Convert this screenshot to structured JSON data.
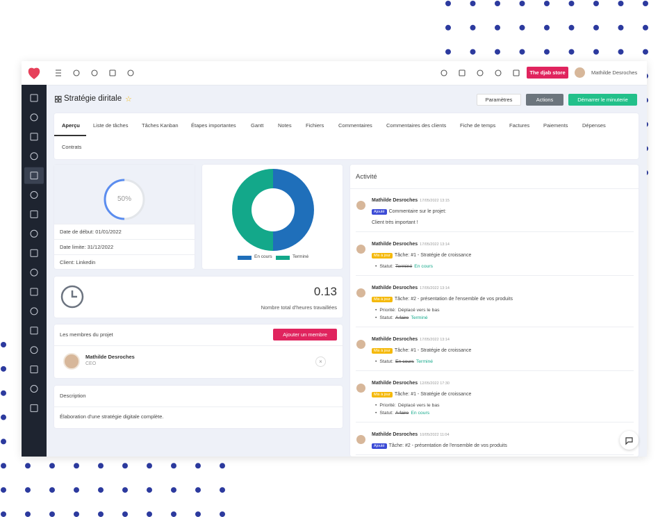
{
  "topbar": {
    "store_button": "The djab store",
    "user": "Mathilde Desroches"
  },
  "project": {
    "title": "Stratégie diritale",
    "buttons": [
      "Paramètres",
      "Actions",
      "Démarrer le minuterie"
    ]
  },
  "tabs": [
    "Aperçu",
    "Liste de tâches",
    "Tâches Kanban",
    "Étapes importantes",
    "Gantt",
    "Notes",
    "Fichiers",
    "Commentaires",
    "Commentaires des clients",
    "Fiche de temps",
    "Factures",
    "Paiements",
    "Dépenses",
    "Contrats"
  ],
  "progress": {
    "value": 50,
    "label": "50%"
  },
  "dates": [
    "Date de début: 01/01/2022",
    "Date limite: 31/12/2022",
    "Client: Linkedin"
  ],
  "chart": {
    "type": "donut",
    "series": [
      {
        "name": "En cours",
        "color": "#1f6fba",
        "value": 50
      },
      {
        "name": "Terminé",
        "color": "#13a88a",
        "value": 50
      }
    ]
  },
  "hours": {
    "value": 0.13,
    "label": "Nombre total d'heures travaillées"
  },
  "members": {
    "title": "Les membres du projet",
    "button": "Ajouter un membre",
    "list": [
      {
        "name": "Mathilde Desroches",
        "role": "CEO"
      }
    ]
  },
  "description": {
    "title": "Description",
    "text": "Élaboration d'une stratégie digitale complète."
  },
  "activity": {
    "title": "Activité",
    "items": [
      {
        "user": "Mathilde Desroches",
        "date": "17/05/2022 13:15",
        "badge": "Ajouté",
        "badge_color": "#3b4bd6",
        "text": "Commentaire sur le projet:",
        "lines": [
          "Client très important !"
        ],
        "details": []
      },
      {
        "user": "Mathilde Desroches",
        "date": "17/05/2022 13:14",
        "badge": "Mis à jour",
        "badge_color": "#f5b90a",
        "text": "Tâche: #1 - Stratégie de croissance",
        "lines": [],
        "details": [
          {
            "label": "Statut:",
            "old": "Terminé",
            "new": "En cours"
          }
        ]
      },
      {
        "user": "Mathilde Desroches",
        "date": "17/05/2022 13:14",
        "badge": "Mis à jour",
        "badge_color": "#f5b90a",
        "text": "Tâche: #2 - présentation de l'ensemble de vos produits",
        "lines": [],
        "details": [
          {
            "label": "Priorité:",
            "text": "Déplacé vers le bas"
          },
          {
            "label": "Statut:",
            "old": "A faire",
            "new": "Terminé"
          }
        ]
      },
      {
        "user": "Mathilde Desroches",
        "date": "17/05/2022 13:14",
        "badge": "Mis à jour",
        "badge_color": "#f5b90a",
        "text": "Tâche: #1 - Stratégie de croissance",
        "lines": [],
        "details": [
          {
            "label": "Statut:",
            "old": "En cours",
            "new": "Terminé"
          }
        ]
      },
      {
        "user": "Mathilde Desroches",
        "date": "12/05/2022 17:30",
        "badge": "Mis à jour",
        "badge_color": "#f5b90a",
        "text": "Tâche: #1 - Stratégie de croissance",
        "lines": [],
        "details": [
          {
            "label": "Priorité:",
            "text": "Déplacé vers le bas"
          },
          {
            "label": "Statut:",
            "old": "A faire",
            "new": "En cours"
          }
        ]
      },
      {
        "user": "Mathilde Desroches",
        "date": "10/05/2022 11:04",
        "badge": "Ajouté",
        "badge_color": "#3b4bd6",
        "text": "Tâche: #2 - présentation de l'ensemble de vos produits",
        "lines": [],
        "details": []
      }
    ]
  }
}
